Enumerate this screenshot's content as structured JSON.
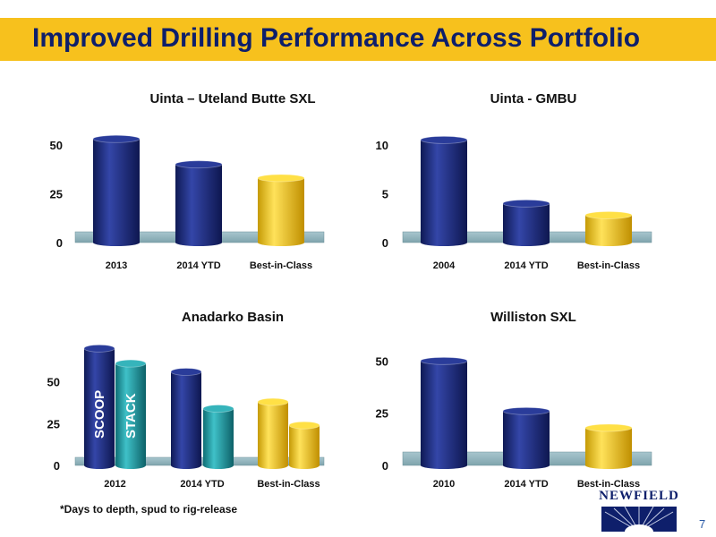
{
  "slide": {
    "title": "Improved Drilling Performance Across Portfolio",
    "footnote": "*Days to depth, spud to rig-release",
    "page_number": "7",
    "logo_text": "NEWFIELD"
  },
  "colors": {
    "title_bar": "#F7C11D",
    "title_text": "#0E1F6B",
    "navy_bar": "#1B2A7A",
    "teal_bar": "#1E9AA2",
    "gold_bar": "#F2C31A",
    "floor": "#8FB2BC"
  },
  "chart_data": [
    {
      "type": "bar",
      "title": "Uinta – Uteland Butte SXL",
      "categories": [
        "2013",
        "2014 YTD",
        "Best-in-Class"
      ],
      "values": [
        53,
        40,
        33
      ],
      "bar_colors": [
        "navy",
        "navy",
        "gold"
      ],
      "yticks": [
        "0",
        "25",
        "50"
      ],
      "ylim": [
        0,
        60
      ]
    },
    {
      "type": "bar",
      "title": "Uinta - GMBU",
      "categories": [
        "2004",
        "2014 YTD",
        "Best-in-Class"
      ],
      "values": [
        10.5,
        4,
        2.8
      ],
      "bar_colors": [
        "navy",
        "navy",
        "gold"
      ],
      "yticks": [
        "0",
        "5",
        "10"
      ],
      "ylim": [
        0,
        12
      ]
    },
    {
      "type": "bar",
      "title": "Anadarko Basin",
      "categories": [
        "2012",
        "2014 YTD",
        "Best-in-Class"
      ],
      "series": [
        {
          "name": "SCOOP",
          "values": [
            70,
            56,
            38
          ],
          "bar_colors": [
            "navy",
            "navy",
            "gold"
          ]
        },
        {
          "name": "STACK",
          "values": [
            61,
            34,
            24
          ],
          "bar_colors": [
            "teal",
            "teal",
            "gold"
          ]
        }
      ],
      "yticks": [
        "0",
        "25",
        "50"
      ],
      "ylim": [
        0,
        75
      ]
    },
    {
      "type": "bar",
      "title": "Williston SXL",
      "categories": [
        "2010",
        "2014 YTD",
        "Best-in-Class"
      ],
      "values": [
        50,
        26,
        18
      ],
      "bar_colors": [
        "navy",
        "navy",
        "gold"
      ],
      "yticks": [
        "0",
        "25",
        "50"
      ],
      "ylim": [
        0,
        60
      ]
    }
  ]
}
